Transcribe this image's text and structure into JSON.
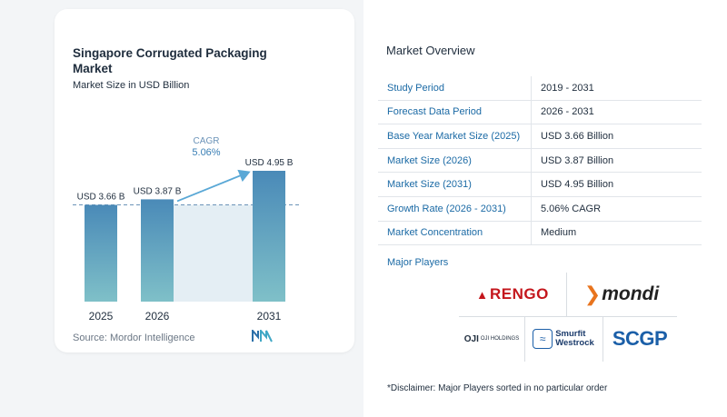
{
  "chart_data": {
    "type": "bar",
    "title": "Singapore Corrugated Packaging Market",
    "subtitle": "Market Size in USD Billion",
    "categories": [
      "2025",
      "2026",
      "2031"
    ],
    "values": [
      3.66,
      3.87,
      4.95
    ],
    "data_labels": [
      "USD 3.66 B",
      "USD 3.87 B",
      "USD 4.95 B"
    ],
    "cagr_label": "CAGR",
    "cagr_value": "5.06%",
    "ylim": [
      0,
      5.5
    ],
    "grid": false,
    "colors": {
      "bar_top": "#4a8ab8",
      "bar_bottom": "#7fc0c8",
      "shade": "#e4eef4",
      "arrow": "#5aa8d6",
      "dashed": "#6b93b8"
    }
  },
  "source": "Source: Mordor Intelligence",
  "source_logo_icon": "mordor-intelligence-logo",
  "overview": {
    "title": "Market Overview",
    "rows": [
      {
        "key": "Study Period",
        "value": "2019 - 2031"
      },
      {
        "key": "Forecast Data Period",
        "value": "2026 - 2031"
      },
      {
        "key": "Base Year Market Size (2025)",
        "value": "USD 3.66 Billion"
      },
      {
        "key": "Market Size (2026)",
        "value": "USD 3.87 Billion"
      },
      {
        "key": "Market Size (2031)",
        "value": "USD 4.95 Billion"
      },
      {
        "key": "Growth Rate (2026 - 2031)",
        "value": "5.06% CAGR"
      },
      {
        "key": "Market Concentration",
        "value": "Medium"
      }
    ]
  },
  "players": {
    "title": "Major Players",
    "logos": {
      "rengo": "RENGO",
      "mondi": "mondi",
      "oji": "OJI",
      "oji_sub": "OJI HOLDINGS",
      "smurfit_1": "Smurfit",
      "smurfit_2": "Westrock",
      "scgp": "SCGP"
    }
  },
  "disclaimer": "*Disclaimer: Major Players sorted in no particular order"
}
